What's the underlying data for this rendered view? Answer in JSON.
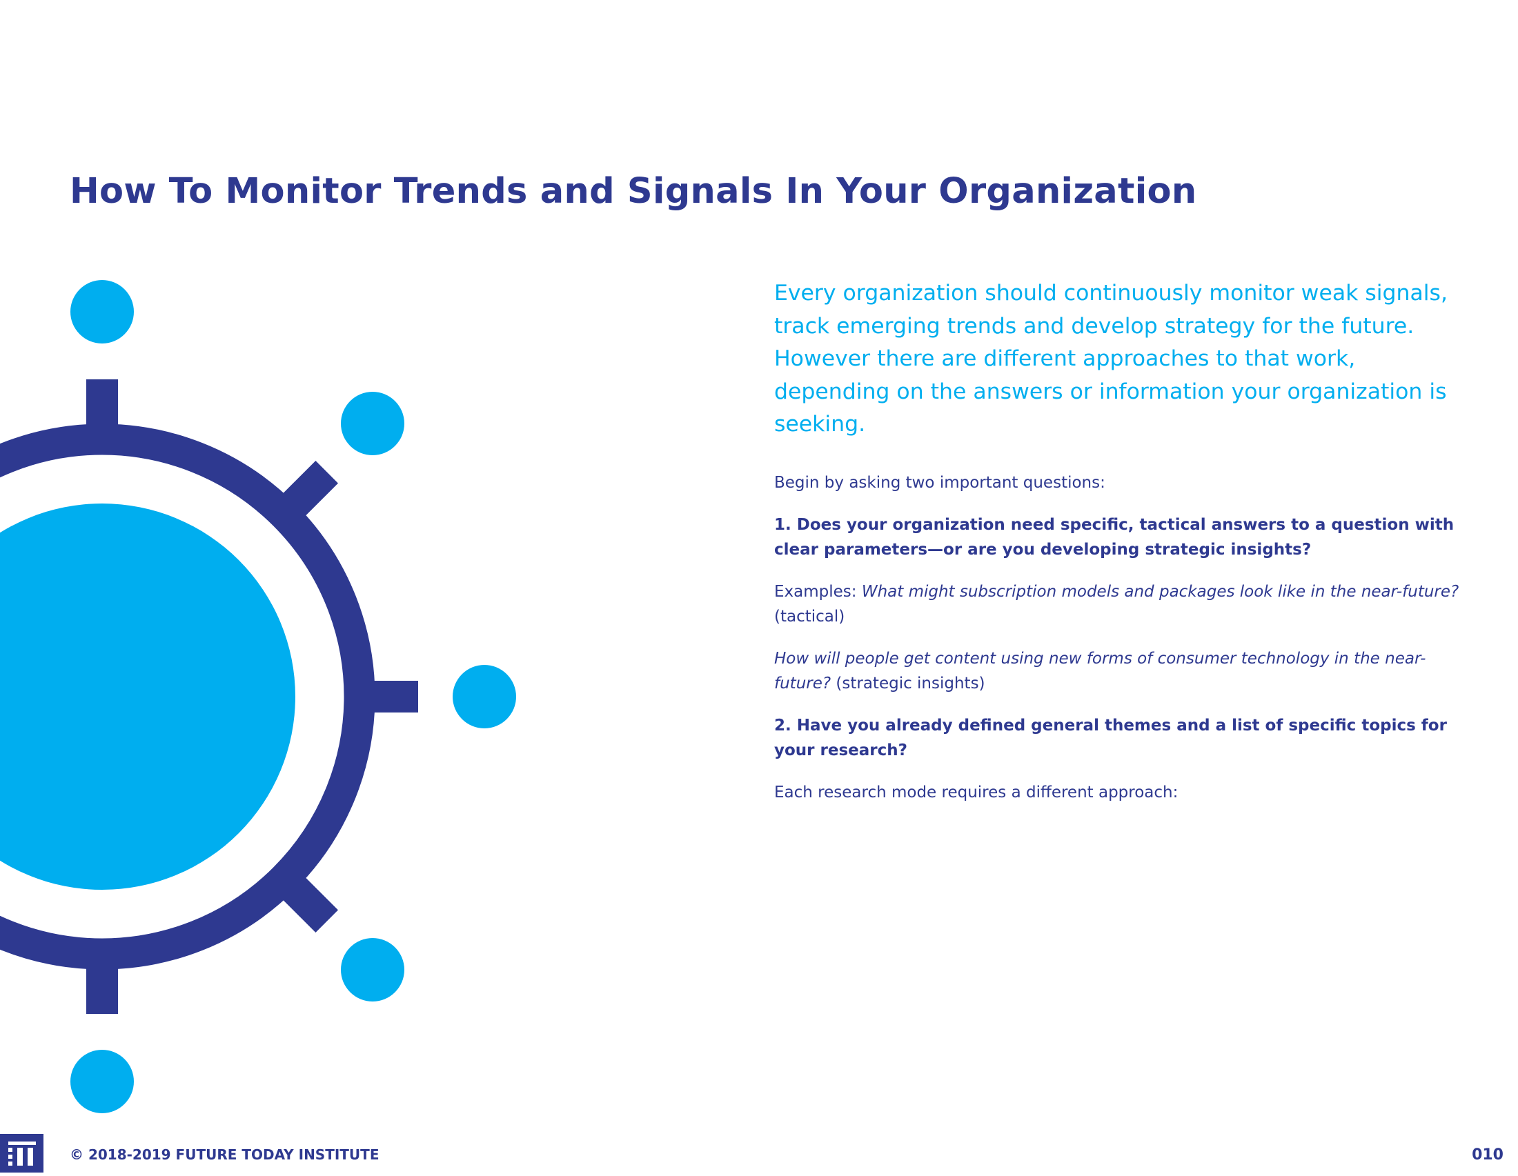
{
  "page": {
    "title": "How To Monitor Trends and Signals In Your Organization",
    "page_number": "010"
  },
  "intro": {
    "lead": "Every organization should continuously monitor weak signals, track emerging trends and develop strategy for the future. However there are different approaches to that work, depending on the answers or information your organization is seeking.",
    "begin": "Begin by asking two important questions:",
    "question_1": "1. Does your organization need specific, tactical answers to a question with clear parameters—or are you developing strategic insights?",
    "example_1_prefix": "Examples: ",
    "example_1_italic": "What might subscription models and packages look like in the near-future?",
    "example_1_suffix": " (tactical)",
    "example_2_italic": "How will people get content using new forms of consumer technology in the near-future?",
    "example_2_suffix": " (strategic insights)",
    "question_2": "2. Have you already defined general themes and a list of specific topics for your research?",
    "closing": "Each research mode requires a different approach:"
  },
  "footer": {
    "copyright": "© 2018-2019 FUTURE TODAY INSTITUTE",
    "logo_icon": "fti-logo-icon"
  },
  "colors": {
    "navy": "#2e3990",
    "cyan": "#00aeef",
    "background": "#ffffff"
  }
}
